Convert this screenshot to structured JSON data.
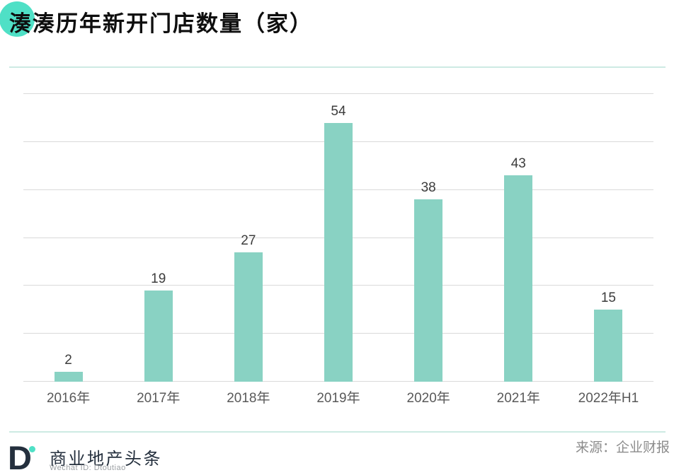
{
  "header": {
    "title": "湊湊历年新开门店数量（家）"
  },
  "chart_data": {
    "type": "bar",
    "title": "湊湊历年新开门店数量（家）",
    "categories": [
      "2016年",
      "2017年",
      "2018年",
      "2019年",
      "2020年",
      "2021年",
      "2022年H1"
    ],
    "values": [
      2,
      19,
      27,
      54,
      38,
      43,
      15
    ],
    "xlabel": "",
    "ylabel": "",
    "ylim": [
      0,
      60
    ],
    "grid_step": 10,
    "grid": true,
    "y_tick_labels_visible": false,
    "legend": false,
    "data_labels": true,
    "bar_color": "#89d2c3"
  },
  "footer": {
    "logo_letter": "D",
    "brand_name": "商业地产头条",
    "wechat_id": "Wechat ID: Dtoutiao",
    "source": "来源：企业财报"
  },
  "colors": {
    "accent_circle": "#4fe0c6",
    "bar": "#89d2c3",
    "separator_line": "#cdeae3",
    "gridline": "#d9d9d9",
    "brand_navy": "#242f3d",
    "value_label": "#3c3c3c",
    "axis_label": "#595959",
    "source_text": "#8c8c8c"
  }
}
